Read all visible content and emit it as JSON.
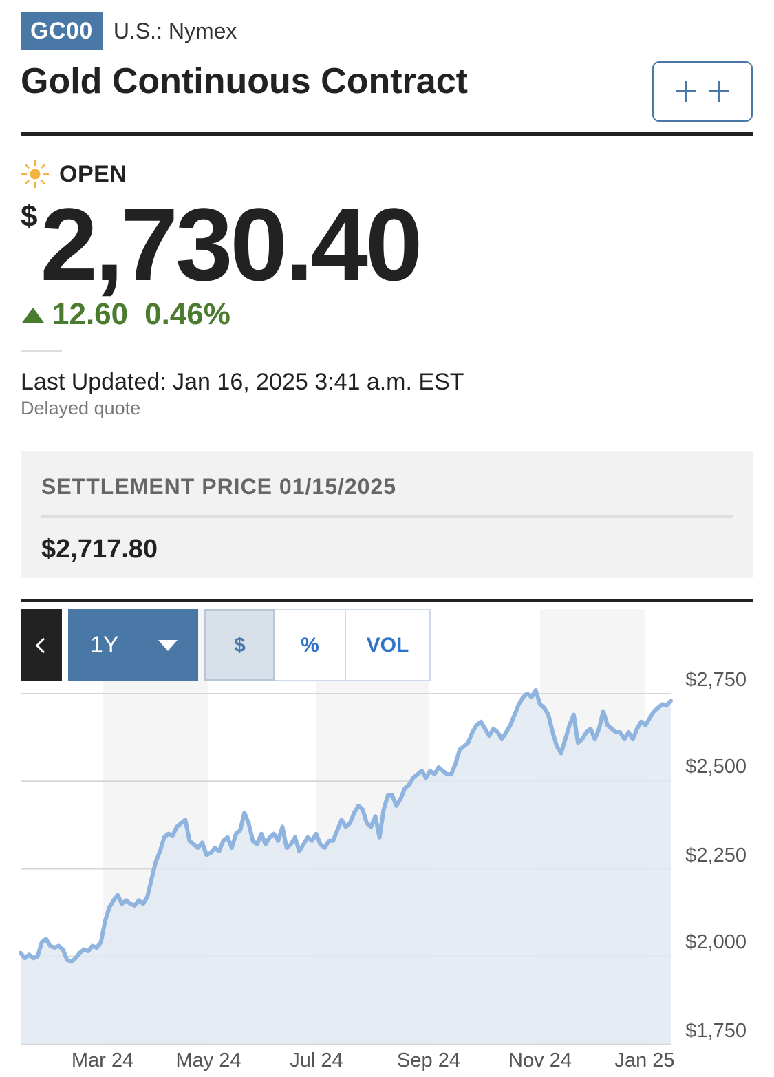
{
  "header": {
    "ticker": "GC00",
    "exchange": "U.S.: Nymex",
    "title": "Gold Continuous Contract",
    "watch_button_label": "+ +"
  },
  "quote": {
    "status": "OPEN",
    "status_icon": "sun-icon",
    "currency_symbol": "$",
    "price": "2,730.40",
    "change": "12.60",
    "change_percent": "0.46%",
    "change_direction": "up",
    "change_color": "#4a7b2f",
    "last_updated": "Last Updated: Jan 16, 2025 3:41 a.m. EST",
    "delay_note": "Delayed quote"
  },
  "settlement": {
    "label": "SETTLEMENT PRICE 01/15/2025",
    "value": "$2,717.80"
  },
  "chart_controls": {
    "prev_icon": "chevron-left-icon",
    "range_selected": "1Y",
    "toggles": [
      {
        "label": "$",
        "active": true
      },
      {
        "label": "%",
        "active": false
      },
      {
        "label": "VOL",
        "active": false
      }
    ]
  },
  "chart_data": {
    "type": "area",
    "y_tick_labels": [
      "$2,750",
      "$2,500",
      "$2,250",
      "$2,000",
      "$1,750"
    ],
    "y_ticks": [
      2750,
      2500,
      2250,
      2000,
      1750
    ],
    "x_tick_labels": [
      "Mar 24",
      "May 24",
      "Jul 24",
      "Sep 24",
      "Nov 24",
      "Jan 25"
    ],
    "ylim": [
      1750,
      2750
    ],
    "grid": true,
    "colors": {
      "line": "#8fb4df",
      "fill": "#e2e9f1",
      "band": "#f5f5f5",
      "band_alt": "#dce4ed"
    },
    "values": [
      2010,
      1995,
      2005,
      1995,
      2000,
      2040,
      2050,
      2030,
      2025,
      2030,
      2020,
      1990,
      1985,
      1995,
      2010,
      2020,
      2015,
      2030,
      2025,
      2040,
      2100,
      2140,
      2160,
      2175,
      2150,
      2160,
      2150,
      2145,
      2160,
      2150,
      2170,
      2220,
      2270,
      2300,
      2340,
      2350,
      2345,
      2370,
      2380,
      2390,
      2330,
      2320,
      2310,
      2325,
      2290,
      2295,
      2310,
      2300,
      2330,
      2340,
      2310,
      2350,
      2360,
      2410,
      2380,
      2330,
      2320,
      2350,
      2320,
      2340,
      2350,
      2330,
      2370,
      2310,
      2320,
      2340,
      2300,
      2320,
      2340,
      2330,
      2350,
      2320,
      2310,
      2330,
      2330,
      2360,
      2390,
      2370,
      2380,
      2410,
      2430,
      2420,
      2380,
      2370,
      2400,
      2340,
      2420,
      2460,
      2460,
      2430,
      2450,
      2480,
      2490,
      2510,
      2520,
      2530,
      2510,
      2530,
      2520,
      2540,
      2530,
      2520,
      2520,
      2550,
      2590,
      2600,
      2610,
      2640,
      2660,
      2670,
      2650,
      2630,
      2650,
      2640,
      2620,
      2640,
      2660,
      2690,
      2720,
      2740,
      2750,
      2740,
      2760,
      2720,
      2710,
      2690,
      2640,
      2600,
      2580,
      2620,
      2660,
      2690,
      2610,
      2620,
      2640,
      2650,
      2620,
      2650,
      2700,
      2660,
      2650,
      2640,
      2640,
      2620,
      2640,
      2620,
      2650,
      2670,
      2660,
      2680,
      2700,
      2710,
      2720,
      2717,
      2730
    ]
  }
}
